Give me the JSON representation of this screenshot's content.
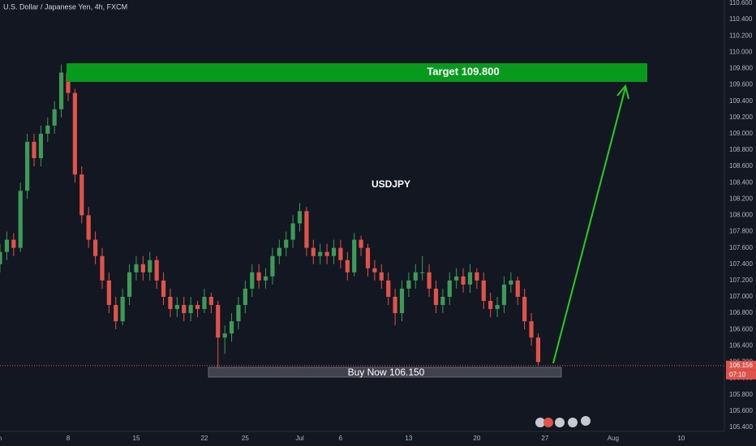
{
  "chart_data": {
    "type": "candlestick",
    "title": "U.S. Dollar / Japanese Yen, 4h, FXCM",
    "annotations": {
      "symbol": "USDJPY",
      "target": "Target 109.800",
      "buy": "Buy Now 106.150"
    },
    "last_price": 106.156,
    "countdown": "07:10",
    "up_color": "#3d9a57",
    "down_color": "#e0534a",
    "x": [
      0,
      3,
      6,
      9,
      12,
      15,
      18,
      21,
      24,
      27,
      30,
      33,
      36,
      39,
      42,
      45,
      48,
      51,
      54,
      57,
      60,
      63,
      66,
      69,
      72,
      75,
      78,
      81,
      84,
      87,
      90,
      93,
      96,
      99,
      102,
      105,
      108,
      111,
      114,
      117,
      120,
      123,
      126,
      129,
      132,
      135,
      138,
      141,
      144,
      147,
      150,
      153,
      156,
      159,
      162,
      165,
      168,
      171,
      174,
      177,
      180,
      183,
      186,
      189,
      192,
      195,
      198,
      201,
      204,
      207,
      210,
      213,
      216,
      219,
      222,
      225,
      228,
      231,
      234,
      237
    ],
    "open": [
      107.4,
      107.55,
      107.7,
      107.6,
      108.3,
      108.9,
      108.7,
      109.0,
      109.1,
      109.3,
      109.75,
      109.5,
      108.5,
      108.0,
      107.7,
      107.5,
      107.2,
      106.9,
      106.7,
      107.0,
      107.3,
      107.4,
      107.3,
      107.45,
      107.2,
      107.0,
      106.85,
      106.9,
      106.8,
      106.9,
      106.85,
      107.0,
      106.9,
      106.5,
      106.55,
      106.7,
      106.9,
      107.1,
      107.3,
      107.2,
      107.25,
      107.5,
      107.6,
      107.7,
      107.9,
      108.05,
      107.6,
      107.5,
      107.55,
      107.5,
      107.6,
      107.45,
      107.3,
      107.7,
      107.6,
      107.35,
      107.3,
      107.2,
      107.0,
      106.8,
      107.1,
      107.2,
      107.3,
      107.3,
      107.1,
      106.9,
      107.0,
      107.2,
      107.25,
      107.15,
      107.3,
      107.2,
      106.95,
      106.85,
      106.9,
      107.15,
      107.2,
      107.0,
      106.7,
      106.5
    ],
    "high": [
      107.65,
      107.8,
      107.78,
      108.4,
      109.0,
      109.0,
      109.1,
      109.2,
      109.4,
      109.85,
      109.82,
      109.55,
      108.6,
      108.1,
      107.8,
      107.6,
      107.3,
      107.0,
      107.1,
      107.4,
      107.5,
      107.5,
      107.55,
      107.5,
      107.3,
      107.1,
      107.0,
      107.0,
      107.0,
      106.95,
      107.1,
      107.05,
      106.95,
      106.65,
      106.8,
      107.0,
      107.2,
      107.4,
      107.4,
      107.35,
      107.6,
      107.7,
      107.8,
      108.0,
      108.15,
      108.1,
      107.7,
      107.65,
      107.65,
      107.7,
      107.7,
      107.55,
      107.78,
      107.75,
      107.65,
      107.45,
      107.4,
      107.3,
      107.1,
      107.2,
      107.3,
      107.4,
      107.5,
      107.4,
      107.2,
      107.1,
      107.3,
      107.35,
      107.35,
      107.4,
      107.35,
      107.3,
      107.05,
      107.0,
      107.25,
      107.3,
      107.25,
      107.1,
      106.8,
      106.55
    ],
    "low": [
      107.3,
      107.45,
      107.5,
      107.55,
      108.2,
      108.6,
      108.6,
      108.9,
      109.0,
      109.2,
      109.4,
      108.4,
      107.9,
      107.6,
      107.4,
      107.1,
      106.8,
      106.6,
      106.65,
      106.9,
      107.2,
      107.2,
      107.2,
      107.1,
      106.9,
      106.75,
      106.75,
      106.7,
      106.7,
      106.75,
      106.8,
      106.8,
      106.12,
      106.3,
      106.45,
      106.6,
      106.8,
      107.0,
      107.1,
      107.1,
      107.15,
      107.4,
      107.5,
      107.6,
      107.8,
      107.5,
      107.4,
      107.4,
      107.4,
      107.4,
      107.35,
      107.2,
      107.25,
      107.5,
      107.25,
      107.2,
      107.1,
      106.9,
      106.65,
      106.7,
      107.0,
      107.1,
      107.2,
      107.0,
      106.8,
      106.8,
      106.9,
      107.1,
      107.05,
      107.05,
      107.1,
      106.85,
      106.75,
      106.75,
      106.8,
      107.05,
      106.9,
      106.6,
      106.4,
      106.15
    ],
    "close": [
      107.55,
      107.7,
      107.6,
      108.3,
      108.9,
      108.7,
      109.0,
      109.1,
      109.3,
      109.75,
      109.5,
      108.5,
      108.0,
      107.7,
      107.5,
      107.2,
      106.9,
      106.7,
      107.0,
      107.3,
      107.4,
      107.3,
      107.45,
      107.2,
      107.0,
      106.85,
      106.9,
      106.8,
      106.9,
      106.85,
      107.0,
      106.9,
      106.5,
      106.55,
      106.7,
      106.9,
      107.1,
      107.3,
      107.2,
      107.25,
      107.5,
      107.6,
      107.7,
      107.9,
      108.05,
      107.6,
      107.5,
      107.55,
      107.5,
      107.6,
      107.45,
      107.3,
      107.7,
      107.6,
      107.35,
      107.3,
      107.2,
      107.0,
      106.8,
      107.1,
      107.2,
      107.3,
      107.3,
      107.1,
      106.9,
      107.0,
      107.2,
      107.25,
      107.15,
      107.3,
      107.2,
      106.95,
      106.85,
      106.9,
      107.15,
      107.2,
      107.0,
      106.7,
      106.5,
      106.2
    ],
    "xlim": [
      0,
      319
    ],
    "xticks": [
      {
        "value": -1.5,
        "label": "Jun"
      },
      {
        "value": 30,
        "label": "8"
      },
      {
        "value": 60,
        "label": "15"
      },
      {
        "value": 90,
        "label": "22"
      },
      {
        "value": 108,
        "label": "25"
      },
      {
        "value": 132,
        "label": "Jul"
      },
      {
        "value": 150,
        "label": "6"
      },
      {
        "value": 180,
        "label": "13"
      },
      {
        "value": 210,
        "label": "20"
      },
      {
        "value": 240,
        "label": "27"
      },
      {
        "value": 270,
        "label": "Aug"
      },
      {
        "value": 300,
        "label": "10"
      }
    ],
    "ylim": [
      105.17,
      110.64
    ],
    "yticks": [
      {
        "value": 105.4,
        "label": "105.400"
      },
      {
        "value": 105.6,
        "label": "105.600"
      },
      {
        "value": 105.8,
        "label": "105.800"
      },
      {
        "value": 106.0,
        "label": "106.000"
      },
      {
        "value": 106.2,
        "label": "106.200"
      },
      {
        "value": 106.4,
        "label": "106.400"
      },
      {
        "value": 106.6,
        "label": "106.600"
      },
      {
        "value": 106.8,
        "label": "106.800"
      },
      {
        "value": 107.0,
        "label": "107.000"
      },
      {
        "value": 107.2,
        "label": "107.200"
      },
      {
        "value": 107.4,
        "label": "107.400"
      },
      {
        "value": 107.6,
        "label": "107.600"
      },
      {
        "value": 107.8,
        "label": "107.800"
      },
      {
        "value": 108.0,
        "label": "108.000"
      },
      {
        "value": 108.2,
        "label": "108.200"
      },
      {
        "value": 108.4,
        "label": "108.400"
      },
      {
        "value": 108.6,
        "label": "108.600"
      },
      {
        "value": 108.8,
        "label": "108.800"
      },
      {
        "value": 109.0,
        "label": "109.000"
      },
      {
        "value": 109.2,
        "label": "109.200"
      },
      {
        "value": 109.4,
        "label": "109.400"
      },
      {
        "value": 109.6,
        "label": "109.600"
      },
      {
        "value": 109.8,
        "label": "109.800"
      },
      {
        "value": 110.0,
        "label": "110.000"
      },
      {
        "value": 110.2,
        "label": "110.200"
      },
      {
        "value": 110.4,
        "label": "110.400"
      },
      {
        "value": 110.6,
        "label": "110.600"
      }
    ]
  }
}
